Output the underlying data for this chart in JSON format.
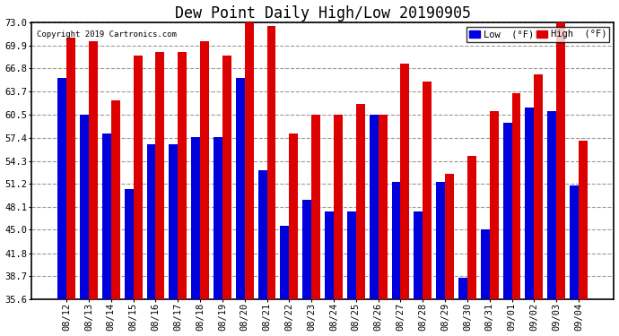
{
  "title": "Dew Point Daily High/Low 20190905",
  "copyright": "Copyright 2019 Cartronics.com",
  "legend_low": "Low  (°F)",
  "legend_high": "High  (°F)",
  "dates": [
    "08/12",
    "08/13",
    "08/14",
    "08/15",
    "08/16",
    "08/17",
    "08/18",
    "08/19",
    "08/20",
    "08/21",
    "08/22",
    "08/23",
    "08/24",
    "08/25",
    "08/26",
    "08/27",
    "08/28",
    "08/29",
    "08/30",
    "08/31",
    "09/01",
    "09/02",
    "09/03",
    "09/04"
  ],
  "high": [
    71.0,
    70.5,
    62.5,
    68.5,
    69.0,
    69.0,
    70.5,
    68.5,
    73.0,
    72.5,
    58.0,
    60.5,
    60.5,
    62.0,
    60.5,
    67.5,
    65.0,
    52.5,
    55.0,
    61.0,
    63.5,
    66.0,
    73.0,
    57.0
  ],
  "low": [
    65.5,
    60.5,
    58.0,
    50.5,
    56.5,
    56.5,
    57.5,
    57.5,
    65.5,
    53.0,
    45.5,
    49.0,
    47.5,
    47.5,
    60.5,
    51.5,
    47.5,
    51.5,
    38.5,
    45.0,
    59.5,
    61.5,
    61.0,
    51.0
  ],
  "ylim_min": 35.6,
  "ylim_max": 73.0,
  "yticks": [
    35.6,
    38.7,
    41.8,
    45.0,
    48.1,
    51.2,
    54.3,
    57.4,
    60.5,
    63.7,
    66.8,
    69.9,
    73.0
  ],
  "bar_width": 0.4,
  "color_low": "#0000dd",
  "color_high": "#dd0000",
  "bg_color": "#ffffff",
  "grid_color": "#999999",
  "title_fontsize": 12,
  "tick_fontsize": 7.5
}
